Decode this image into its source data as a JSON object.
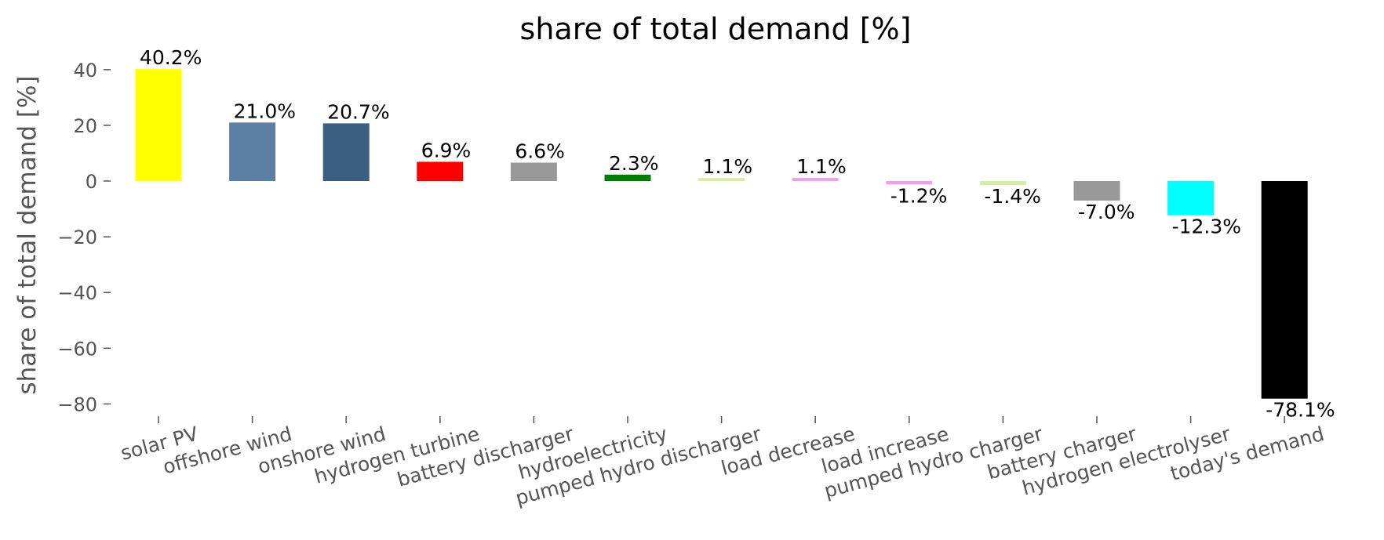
{
  "chart_data": {
    "type": "bar",
    "title": "share of total demand [%]",
    "xlabel": "",
    "ylabel": "share of total demand [%]",
    "ylim": [
      -85,
      45
    ],
    "yticks": [
      40,
      20,
      0,
      -20,
      -40,
      -60,
      -80
    ],
    "ytick_labels": [
      "40",
      "20",
      "0",
      "−20",
      "−40",
      "−60",
      "−80"
    ],
    "grid": false,
    "categories": [
      "solar PV",
      "offshore wind",
      "onshore wind",
      "hydrogen turbine",
      "battery discharger",
      "hydroelectricity",
      "pumped hydro discharger",
      "load decrease",
      "load increase",
      "pumped hydro charger",
      "battery charger",
      "hydrogen electrolyser",
      "today's demand"
    ],
    "values": [
      40.2,
      21.0,
      20.7,
      6.9,
      6.6,
      2.3,
      1.1,
      1.1,
      -1.2,
      -1.4,
      -7.0,
      -12.3,
      -78.1
    ],
    "data_labels": [
      "40.2%",
      "21.0%",
      "20.7%",
      "6.9%",
      "6.6%",
      "2.3%",
      "1.1%",
      "1.1%",
      "-1.2%",
      "-1.4%",
      "-7.0%",
      "-12.3%",
      "-78.1%"
    ],
    "colors": [
      "#ffff00",
      "#5b80a3",
      "#3a5f81",
      "#ff0000",
      "#999999",
      "#008000",
      "#d2f0a0",
      "#f49cf4",
      "#f49cf4",
      "#d2f0a0",
      "#999999",
      "#00ffff",
      "#000000"
    ]
  }
}
